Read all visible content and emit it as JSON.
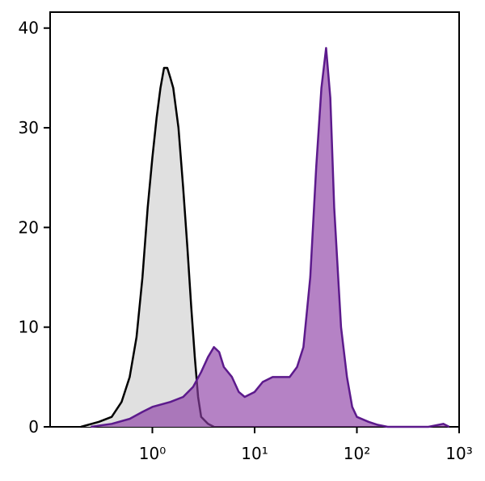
{
  "chart_data": {
    "type": "area",
    "xscale": "log",
    "xlim": [
      0.1,
      1000
    ],
    "ylim": [
      0,
      41.6
    ],
    "xticks": [
      {
        "value": 1,
        "label": "10⁰"
      },
      {
        "value": 10,
        "label": "10¹"
      },
      {
        "value": 100,
        "label": "10²"
      },
      {
        "value": 1000,
        "label": "10³"
      }
    ],
    "yticks": [
      0,
      10,
      20,
      30,
      40
    ],
    "series": [
      {
        "color": "#000000",
        "fill_color": "#e0e0e0",
        "x": [
          0.2,
          0.3,
          0.4,
          0.5,
          0.6,
          0.7,
          0.8,
          0.9,
          1.0,
          1.1,
          1.2,
          1.3,
          1.4,
          1.5,
          1.6,
          1.8,
          2.0,
          2.2,
          2.4,
          2.6,
          2.8,
          3.0,
          3.5,
          4
        ],
        "values": [
          0,
          0.5,
          1,
          2.5,
          5,
          9,
          15,
          22,
          27,
          31,
          34,
          36,
          36,
          35,
          34,
          30,
          24,
          18,
          12,
          7,
          3,
          1,
          0.3,
          0
        ]
      },
      {
        "color": "#5c1a8c",
        "fill_color": "#8e3fa6",
        "x": [
          0.25,
          0.4,
          0.6,
          0.8,
          1.0,
          1.5,
          2,
          2.5,
          3,
          3.5,
          4,
          4.5,
          5,
          6,
          7,
          8,
          10,
          12,
          15,
          18,
          22,
          26,
          30,
          35,
          40,
          45,
          50,
          55,
          60,
          70,
          80,
          90,
          100,
          130,
          160,
          200,
          500,
          700,
          800
        ],
        "values": [
          0,
          0.3,
          0.8,
          1.5,
          2,
          2.5,
          3,
          4,
          5.5,
          7,
          8,
          7.5,
          6,
          5,
          3.5,
          3,
          3.5,
          4.5,
          5,
          5,
          5,
          6,
          8,
          15,
          26,
          34,
          38,
          33,
          22,
          10,
          5,
          2,
          1,
          0.5,
          0.2,
          0,
          0,
          0.3,
          0
        ]
      }
    ]
  }
}
